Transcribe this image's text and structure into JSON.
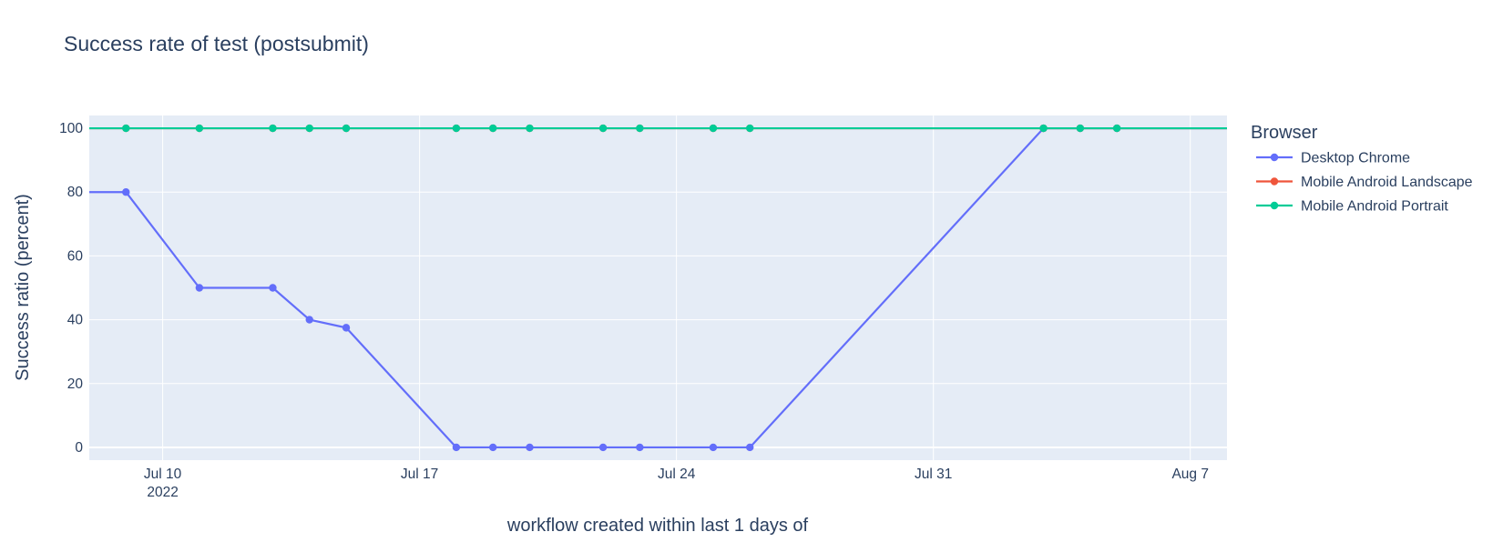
{
  "chart_data": {
    "type": "line",
    "title": "Success rate of test (postsubmit)",
    "xlabel": "workflow created within last 1 days of",
    "ylabel": "Success ratio (percent)",
    "x_type": "date",
    "xlim": [
      "2022-07-08",
      "2022-08-08"
    ],
    "ylim": [
      -4,
      104
    ],
    "y_ticks": [
      0,
      20,
      40,
      60,
      80,
      100
    ],
    "x_ticks": [
      {
        "date": "2022-07-10",
        "label": "Jul 10",
        "sublabel": "2022"
      },
      {
        "date": "2022-07-17",
        "label": "Jul 17",
        "sublabel": ""
      },
      {
        "date": "2022-07-24",
        "label": "Jul 24",
        "sublabel": ""
      },
      {
        "date": "2022-07-31",
        "label": "Jul 31",
        "sublabel": ""
      },
      {
        "date": "2022-08-07",
        "label": "Aug 7",
        "sublabel": ""
      }
    ],
    "grid": true,
    "legend_title": "Browser",
    "legend_position": "right",
    "series": [
      {
        "name": "Desktop Chrome",
        "color": "#636efa",
        "points": [
          {
            "x": "2022-07-08",
            "y": 80,
            "marker": false
          },
          {
            "x": "2022-07-09",
            "y": 80
          },
          {
            "x": "2022-07-11",
            "y": 50
          },
          {
            "x": "2022-07-13",
            "y": 50
          },
          {
            "x": "2022-07-14",
            "y": 40
          },
          {
            "x": "2022-07-15",
            "y": 37.5
          },
          {
            "x": "2022-07-18",
            "y": 0
          },
          {
            "x": "2022-07-19",
            "y": 0
          },
          {
            "x": "2022-07-20",
            "y": 0
          },
          {
            "x": "2022-07-22",
            "y": 0
          },
          {
            "x": "2022-07-23",
            "y": 0
          },
          {
            "x": "2022-07-25",
            "y": 0
          },
          {
            "x": "2022-07-26",
            "y": 0
          },
          {
            "x": "2022-08-03",
            "y": 100
          },
          {
            "x": "2022-08-04",
            "y": 100
          },
          {
            "x": "2022-08-05",
            "y": 100
          },
          {
            "x": "2022-08-08",
            "y": 100,
            "marker": false
          }
        ]
      },
      {
        "name": "Mobile Android Landscape",
        "color": "#ef553b",
        "points": [
          {
            "x": "2022-07-08",
            "y": 100,
            "marker": false
          },
          {
            "x": "2022-07-09",
            "y": 100
          },
          {
            "x": "2022-07-11",
            "y": 100
          },
          {
            "x": "2022-07-13",
            "y": 100
          },
          {
            "x": "2022-07-14",
            "y": 100
          },
          {
            "x": "2022-07-15",
            "y": 100
          },
          {
            "x": "2022-07-18",
            "y": 100
          },
          {
            "x": "2022-07-19",
            "y": 100
          },
          {
            "x": "2022-07-20",
            "y": 100
          },
          {
            "x": "2022-07-22",
            "y": 100
          },
          {
            "x": "2022-07-23",
            "y": 100
          },
          {
            "x": "2022-07-25",
            "y": 100
          },
          {
            "x": "2022-07-26",
            "y": 100
          },
          {
            "x": "2022-08-03",
            "y": 100
          },
          {
            "x": "2022-08-04",
            "y": 100
          },
          {
            "x": "2022-08-05",
            "y": 100
          },
          {
            "x": "2022-08-08",
            "y": 100,
            "marker": false
          }
        ]
      },
      {
        "name": "Mobile Android Portrait",
        "color": "#00cc96",
        "points": [
          {
            "x": "2022-07-08",
            "y": 100,
            "marker": false
          },
          {
            "x": "2022-07-09",
            "y": 100
          },
          {
            "x": "2022-07-11",
            "y": 100
          },
          {
            "x": "2022-07-13",
            "y": 100
          },
          {
            "x": "2022-07-14",
            "y": 100
          },
          {
            "x": "2022-07-15",
            "y": 100
          },
          {
            "x": "2022-07-18",
            "y": 100
          },
          {
            "x": "2022-07-19",
            "y": 100
          },
          {
            "x": "2022-07-20",
            "y": 100
          },
          {
            "x": "2022-07-22",
            "y": 100
          },
          {
            "x": "2022-07-23",
            "y": 100
          },
          {
            "x": "2022-07-25",
            "y": 100
          },
          {
            "x": "2022-07-26",
            "y": 100
          },
          {
            "x": "2022-08-03",
            "y": 100
          },
          {
            "x": "2022-08-04",
            "y": 100
          },
          {
            "x": "2022-08-05",
            "y": 100
          },
          {
            "x": "2022-08-08",
            "y": 100,
            "marker": false
          }
        ]
      }
    ],
    "plot_background": "#e5ecf6",
    "gridline_color": "#ffffff",
    "text_color": "#2a3f5f"
  }
}
